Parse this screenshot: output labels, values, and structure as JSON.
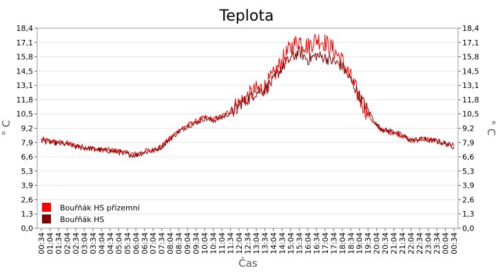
{
  "chart_data": {
    "type": "line",
    "title": "Teplota",
    "xlabel": "Čas",
    "ylabel": "° C",
    "ylabel_right": "° C",
    "ylim": [
      0,
      18.4
    ],
    "yticks": [
      "0,0",
      "1,3",
      "2,6",
      "3,9",
      "5,3",
      "6,6",
      "7,9",
      "9,2",
      "10,5",
      "11,8",
      "13,1",
      "14,5",
      "15,8",
      "17,1",
      "18,4"
    ],
    "xticks": [
      "00:34",
      "01:04",
      "01:34",
      "02:04",
      "02:34",
      "03:04",
      "03:34",
      "04:04",
      "04:34",
      "05:04",
      "05:34",
      "06:04",
      "06:34",
      "07:04",
      "07:34",
      "08:04",
      "08:34",
      "09:04",
      "09:34",
      "10:04",
      "10:34",
      "11:04",
      "11:34",
      "12:04",
      "12:34",
      "13:04",
      "13:34",
      "14:04",
      "14:34",
      "15:04",
      "15:34",
      "16:04",
      "16:34",
      "17:04",
      "17:34",
      "18:04",
      "18:34",
      "19:04",
      "19:34",
      "20:04",
      "20:34",
      "21:04",
      "21:34",
      "22:04",
      "22:34",
      "23:04",
      "23:34",
      "00:04",
      "00:34"
    ],
    "grid": true,
    "legend_position": "bottom-left",
    "series": [
      {
        "name": "Bouřňák HS přízemní",
        "color": "#ff0000",
        "values": [
          8.2,
          8.0,
          7.9,
          7.8,
          7.6,
          7.5,
          7.3,
          7.2,
          7.2,
          7.1,
          6.9,
          6.8,
          7.1,
          7.2,
          7.6,
          8.3,
          9.0,
          9.5,
          9.8,
          10.2,
          10.0,
          10.3,
          10.8,
          11.5,
          12.1,
          12.7,
          13.0,
          14.0,
          15.4,
          16.6,
          17.3,
          16.7,
          17.4,
          17.1,
          16.4,
          15.4,
          13.8,
          12.0,
          10.5,
          9.3,
          8.9,
          8.8,
          8.5,
          8.0,
          8.2,
          8.2,
          8.0,
          7.8,
          7.6
        ]
      },
      {
        "name": "Bouřňák HS",
        "color": "#800000",
        "values": [
          8.1,
          7.9,
          7.8,
          7.7,
          7.5,
          7.4,
          7.3,
          7.2,
          7.1,
          7.0,
          6.8,
          6.7,
          7.0,
          7.1,
          7.5,
          8.2,
          8.9,
          9.4,
          9.7,
          10.1,
          9.9,
          10.2,
          10.6,
          11.3,
          11.9,
          12.5,
          12.8,
          13.6,
          14.8,
          15.6,
          16.2,
          15.5,
          15.9,
          15.7,
          15.3,
          14.9,
          13.6,
          12.2,
          10.9,
          9.5,
          9.0,
          8.9,
          8.5,
          8.1,
          8.2,
          8.1,
          8.0,
          7.8,
          7.5
        ]
      }
    ]
  }
}
